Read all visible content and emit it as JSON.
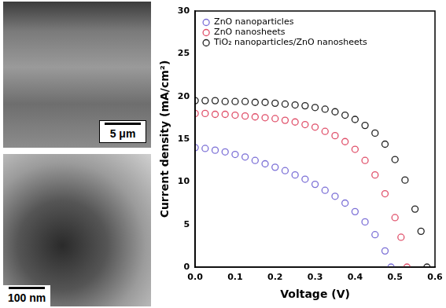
{
  "micrographs": [
    {
      "scale_bar": "5 μm"
    },
    {
      "scale_bar": "100 nm"
    }
  ],
  "chart_data": {
    "type": "scatter",
    "x_label": "Voltage (V)",
    "y_label": "Current density (mA/cm²)",
    "xlim": [
      0,
      0.6
    ],
    "xticks": [
      {
        "value": 0,
        "label": "0.0"
      },
      0.1,
      0.2,
      0.3,
      0.4,
      0.5,
      0.6
    ],
    "ylim": [
      0,
      30
    ],
    "yticks": [
      0,
      5,
      10,
      15,
      20,
      25,
      30
    ],
    "grid": false,
    "legend": "upper left",
    "marker": "circle",
    "series": [
      {
        "name": "ZnO nanoparticles",
        "color": "#7b6fd6",
        "x": [
          0,
          0.025,
          0.05,
          0.075,
          0.1,
          0.125,
          0.15,
          0.175,
          0.2,
          0.225,
          0.25,
          0.275,
          0.3,
          0.325,
          0.35,
          0.375,
          0.4,
          0.425,
          0.45,
          0.475,
          0.49
        ],
        "values": [
          14.0,
          13.9,
          13.7,
          13.5,
          13.2,
          12.9,
          12.5,
          12.1,
          11.7,
          11.3,
          10.8,
          10.3,
          9.7,
          9.0,
          8.3,
          7.5,
          6.5,
          5.3,
          3.8,
          1.9,
          0
        ]
      },
      {
        "name": "ZnO nanosheets",
        "color": "#e0506a",
        "x": [
          0,
          0.025,
          0.05,
          0.075,
          0.1,
          0.125,
          0.15,
          0.175,
          0.2,
          0.225,
          0.25,
          0.275,
          0.3,
          0.325,
          0.35,
          0.375,
          0.4,
          0.425,
          0.45,
          0.475,
          0.5,
          0.515,
          0.53
        ],
        "values": [
          18.0,
          18.0,
          17.9,
          17.9,
          17.8,
          17.7,
          17.6,
          17.5,
          17.4,
          17.2,
          17.0,
          16.7,
          16.4,
          15.9,
          15.4,
          14.7,
          13.8,
          12.5,
          10.8,
          8.6,
          5.8,
          3.5,
          0
        ]
      },
      {
        "name": "TiO₂ nanoparticles/ZnO nanosheets",
        "color": "#222222",
        "x": [
          0,
          0.025,
          0.05,
          0.075,
          0.1,
          0.125,
          0.15,
          0.175,
          0.2,
          0.225,
          0.25,
          0.275,
          0.3,
          0.325,
          0.35,
          0.375,
          0.4,
          0.425,
          0.45,
          0.475,
          0.5,
          0.525,
          0.55,
          0.565,
          0.58
        ],
        "values": [
          19.5,
          19.5,
          19.5,
          19.4,
          19.4,
          19.4,
          19.3,
          19.3,
          19.2,
          19.1,
          19.0,
          18.9,
          18.7,
          18.5,
          18.2,
          17.8,
          17.3,
          16.6,
          15.7,
          14.4,
          12.6,
          10.2,
          6.8,
          4.2,
          0
        ]
      }
    ]
  }
}
